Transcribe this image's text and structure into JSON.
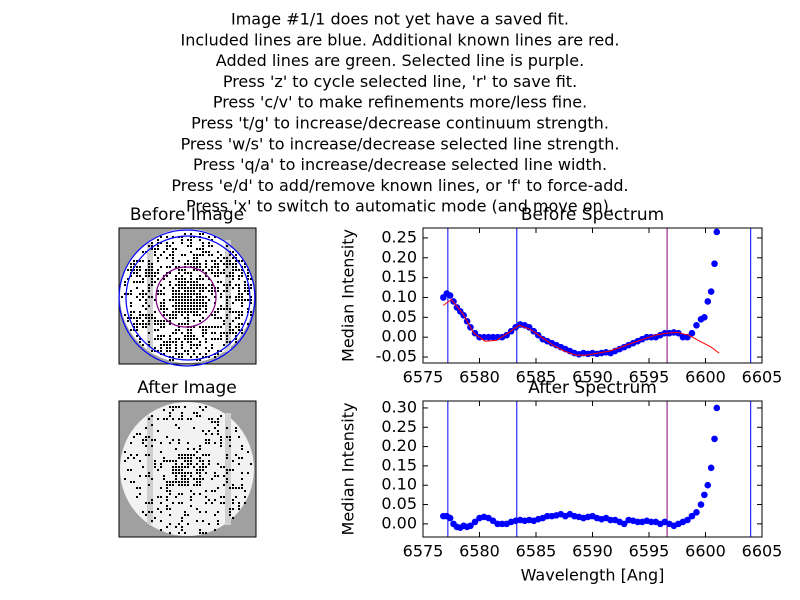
{
  "header": {
    "lines": [
      "Image #1/1 does not yet have a saved fit.",
      "Included lines are blue. Additional known lines are red.",
      "Added lines are green. Selected line is purple.",
      "Press 'z' to cycle selected line, 'r' to save fit.",
      "Press 'c/v' to make refinements more/less fine.",
      "Press 't/g' to increase/decrease continuum strength.",
      "Press 'w/s' to increase/decrease selected line strength.",
      "Press 'q/a' to increase/decrease selected line width.",
      "Press 'e/d' to add/remove known lines, or 'f' to force-add.",
      "Press 'x' to switch to automatic mode (and move on)."
    ]
  },
  "images": [
    {
      "title": "Before Image"
    },
    {
      "title": "After Image"
    }
  ],
  "chart_data": [
    {
      "type": "scatter",
      "title": "Before Spectrum",
      "ylabel": "Median Intensity",
      "xlim": [
        6575,
        6605
      ],
      "xticks": [
        6575,
        6580,
        6585,
        6590,
        6595,
        6600,
        6605
      ],
      "ylim": [
        -0.065,
        0.275
      ],
      "yticks": [
        -0.05,
        {
          "value": 0,
          "label": "0.00"
        },
        0.05,
        {
          "value": 0.1,
          "label": "0.10"
        },
        0.15,
        {
          "value": 0.2,
          "label": "0.20"
        },
        0.25
      ],
      "vlines": [
        {
          "x": 6577.2,
          "color": "#0000ff"
        },
        {
          "x": 6583.3,
          "color": "#0000ff"
        },
        {
          "x": 6596.6,
          "color": "#800080"
        },
        {
          "x": 6604.0,
          "color": "#0000ff"
        }
      ],
      "series": [
        {
          "kind": "scatter",
          "color": "#0000ff",
          "x": [
            6576.8,
            6577.1,
            6577.4,
            6577.7,
            6578.0,
            6578.3,
            6578.6,
            6578.9,
            6579.2,
            6579.6,
            6580.0,
            6580.4,
            6580.8,
            6581.2,
            6581.6,
            6582.0,
            6582.4,
            6582.8,
            6583.2,
            6583.6,
            6584.0,
            6584.4,
            6584.8,
            6585.2,
            6585.6,
            6586.0,
            6586.4,
            6586.8,
            6587.2,
            6587.6,
            6588.0,
            6588.4,
            6588.8,
            6589.2,
            6589.6,
            6590.0,
            6590.4,
            6590.8,
            6591.2,
            6591.6,
            6592.0,
            6592.4,
            6592.8,
            6593.2,
            6593.6,
            6594.0,
            6594.4,
            6594.8,
            6595.2,
            6595.6,
            6596.0,
            6596.4,
            6596.8,
            6597.2,
            6597.6,
            6598.0,
            6598.4,
            6598.8,
            6599.2,
            6599.6,
            6599.9,
            6600.2,
            6600.5,
            6600.8,
            6601.0
          ],
          "values": [
            0.1,
            0.11,
            0.105,
            0.09,
            0.075,
            0.065,
            0.055,
            0.04,
            0.025,
            0.01,
            0.0,
            0.0,
            0.0,
            0.0,
            0.0,
            0.0,
            0.005,
            0.015,
            0.025,
            0.032,
            0.03,
            0.025,
            0.015,
            0.005,
            -0.005,
            -0.01,
            -0.015,
            -0.02,
            -0.025,
            -0.03,
            -0.035,
            -0.04,
            -0.043,
            -0.04,
            -0.042,
            -0.04,
            -0.042,
            -0.04,
            -0.038,
            -0.04,
            -0.035,
            -0.03,
            -0.025,
            -0.02,
            -0.015,
            -0.01,
            -0.005,
            0.0,
            0.0,
            0.0,
            0.005,
            0.01,
            0.01,
            0.012,
            0.01,
            0.0,
            0.0,
            0.01,
            0.03,
            0.045,
            0.05,
            0.09,
            0.115,
            0.185,
            0.265
          ]
        },
        {
          "kind": "line",
          "color": "#ff0000",
          "x": [
            6576.8,
            6577.5,
            6578.5,
            6579.5,
            6580.5,
            6581.5,
            6582.5,
            6583.5,
            6584.5,
            6585.5,
            6586.5,
            6587.5,
            6588.5,
            6589.5,
            6590.5,
            6591.5,
            6592.5,
            6593.5,
            6594.5,
            6595.5,
            6596.5,
            6597.5,
            6598.5,
            6599.5,
            6600.5,
            6601.2
          ],
          "values": [
            0.08,
            0.095,
            0.06,
            0.01,
            -0.01,
            -0.008,
            0.01,
            0.03,
            0.02,
            0.0,
            -0.02,
            -0.035,
            -0.045,
            -0.045,
            -0.04,
            -0.035,
            -0.025,
            -0.015,
            -0.005,
            0.005,
            0.01,
            0.012,
            0.005,
            -0.01,
            -0.025,
            -0.04
          ]
        }
      ]
    },
    {
      "type": "scatter",
      "title": "After Spectrum",
      "ylabel": "Median Intensity",
      "xlabel": "Wavelength [Ang]",
      "xlim": [
        6575,
        6605
      ],
      "xticks": [
        6575,
        6580,
        6585,
        6590,
        6595,
        6600,
        6605
      ],
      "ylim": [
        -0.034,
        0.318
      ],
      "yticks": [
        {
          "value": 0,
          "label": "0.00"
        },
        0.05,
        {
          "value": 0.1,
          "label": "0.10"
        },
        0.15,
        {
          "value": 0.2,
          "label": "0.20"
        },
        0.25,
        {
          "value": 0.3,
          "label": "0.30"
        }
      ],
      "vlines": [
        {
          "x": 6577.2,
          "color": "#0000ff"
        },
        {
          "x": 6583.3,
          "color": "#0000ff"
        },
        {
          "x": 6596.6,
          "color": "#800080"
        },
        {
          "x": 6604.0,
          "color": "#0000ff"
        }
      ],
      "series": [
        {
          "kind": "scatter",
          "color": "#0000ff",
          "x": [
            6576.8,
            6577.1,
            6577.4,
            6577.7,
            6578.0,
            6578.3,
            6578.6,
            6578.9,
            6579.2,
            6579.6,
            6580.0,
            6580.4,
            6580.8,
            6581.2,
            6581.6,
            6582.0,
            6582.4,
            6582.8,
            6583.2,
            6583.6,
            6584.0,
            6584.4,
            6584.8,
            6585.2,
            6585.6,
            6586.0,
            6586.4,
            6586.8,
            6587.2,
            6587.6,
            6588.0,
            6588.4,
            6588.8,
            6589.2,
            6589.6,
            6590.0,
            6590.4,
            6590.8,
            6591.2,
            6591.6,
            6592.0,
            6592.4,
            6592.8,
            6593.2,
            6593.6,
            6594.0,
            6594.4,
            6594.8,
            6595.2,
            6595.6,
            6596.0,
            6596.4,
            6596.8,
            6597.2,
            6597.6,
            6598.0,
            6598.4,
            6598.8,
            6599.2,
            6599.6,
            6599.9,
            6600.2,
            6600.5,
            6600.8,
            6601.0
          ],
          "values": [
            0.02,
            0.02,
            0.015,
            0.0,
            -0.008,
            -0.01,
            -0.005,
            -0.008,
            -0.005,
            0.005,
            0.015,
            0.018,
            0.015,
            0.008,
            0.0,
            0.0,
            0.0,
            0.005,
            0.008,
            0.01,
            0.008,
            0.01,
            0.008,
            0.012,
            0.015,
            0.02,
            0.02,
            0.022,
            0.025,
            0.02,
            0.025,
            0.02,
            0.018,
            0.015,
            0.018,
            0.02,
            0.015,
            0.012,
            0.015,
            0.01,
            0.01,
            0.005,
            0.0,
            0.01,
            0.008,
            0.005,
            0.005,
            0.008,
            0.005,
            0.005,
            0.0,
            0.005,
            0.0,
            -0.005,
            0.0,
            0.005,
            0.01,
            0.02,
            0.03,
            0.05,
            0.075,
            0.1,
            0.145,
            0.22,
            0.3
          ]
        }
      ]
    }
  ]
}
